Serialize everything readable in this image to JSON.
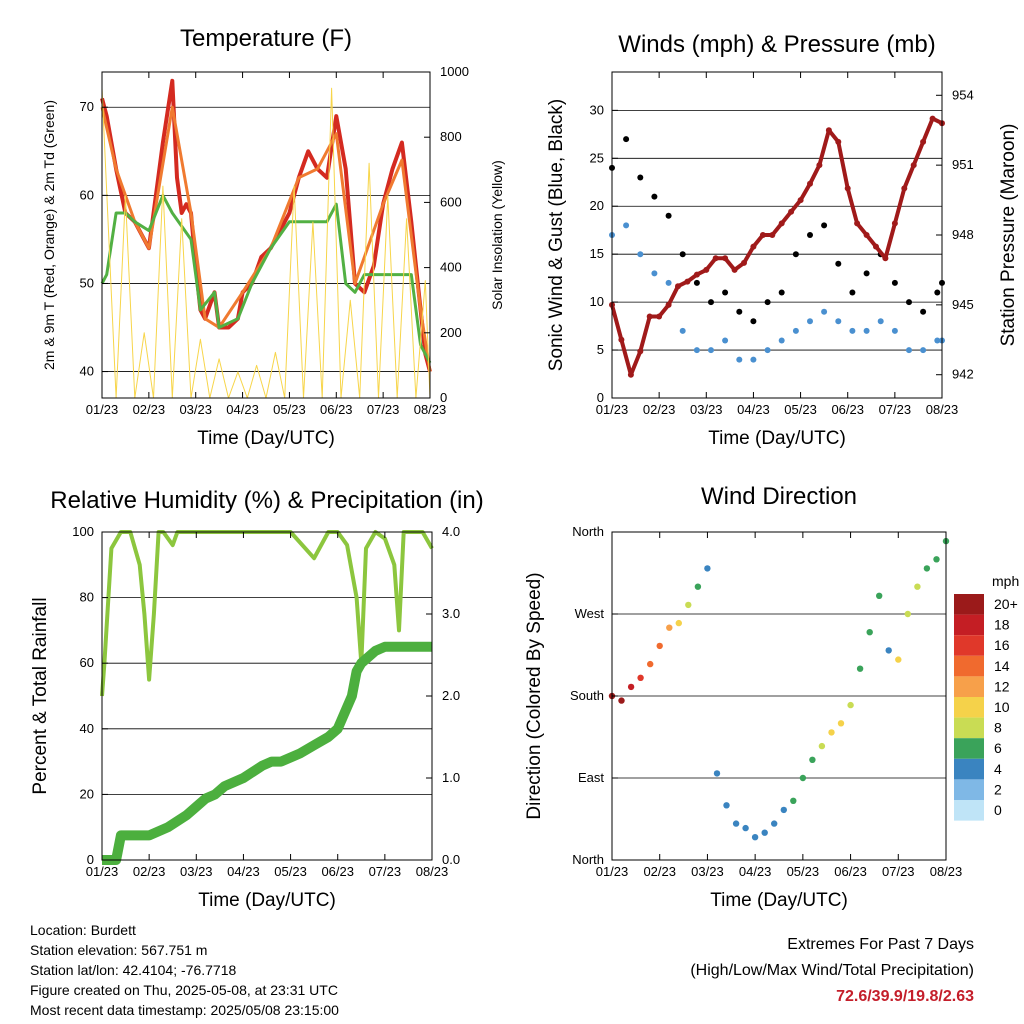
{
  "chart_data": [
    {
      "type": "line",
      "title": "Temperature (F)",
      "xlabel": "Time (Day/UTC)",
      "ylabel": "2m & 9m T (Red, Orange) & 2m Td (Green)",
      "ylabel_right": "Solar Insolation (Yellow)",
      "x_ticks": [
        "01/23",
        "02/23",
        "03/23",
        "04/23",
        "05/23",
        "06/23",
        "07/23",
        "08/23"
      ],
      "ylim": [
        37,
        74
      ],
      "y_ticks": [
        "40",
        "50",
        "60",
        "70"
      ],
      "ylim_right": [
        0,
        1000
      ],
      "y_ticks_right": [
        "0",
        "200",
        "400",
        "600",
        "800",
        "1000"
      ],
      "grid": "horizontal",
      "series": [
        {
          "name": "2m T",
          "color": "#d42a20",
          "x": [
            0,
            0.1,
            0.3,
            0.5,
            0.7,
            0.9,
            1,
            1.3,
            1.5,
            1.6,
            1.7,
            1.8,
            1.9,
            2.0,
            2.1,
            2.2,
            2.4,
            2.5,
            2.7,
            2.9,
            3.0,
            3.2,
            3.4,
            3.6,
            3.8,
            4.0,
            4.2,
            4.4,
            4.6,
            4.8,
            5.0,
            5.2,
            5.4,
            5.6,
            5.8,
            6.0,
            6.2,
            6.4,
            6.6,
            6.8,
            6.9,
            7.0
          ],
          "y": [
            71,
            69,
            63,
            58,
            57,
            55,
            54,
            66,
            73,
            62,
            58,
            59,
            58,
            52,
            47,
            46,
            49,
            45,
            45,
            46,
            49,
            50,
            53,
            54,
            56,
            58,
            62,
            65,
            63,
            62,
            69,
            63,
            50,
            49,
            52,
            59,
            63,
            66,
            57,
            47,
            42,
            40
          ]
        },
        {
          "name": "9m T",
          "color": "#f07a30",
          "x": [
            0,
            0.3,
            0.7,
            1,
            1.5,
            1.9,
            2.2,
            2.5,
            3.0,
            3.6,
            4.2,
            4.6,
            5.0,
            5.4,
            6.0,
            6.4,
            6.8,
            7.0
          ],
          "y": [
            70,
            63,
            57,
            54,
            70,
            58,
            46,
            45,
            49,
            54,
            62,
            63,
            67,
            50,
            59,
            64,
            47,
            40
          ]
        },
        {
          "name": "2m Td",
          "color": "#52b043",
          "x": [
            0,
            0.1,
            0.3,
            0.5,
            0.7,
            1,
            1.3,
            1.5,
            1.9,
            2.1,
            2.4,
            2.5,
            2.9,
            3.2,
            3.6,
            4.0,
            4.4,
            4.8,
            5.0,
            5.2,
            5.4,
            5.6,
            5.8,
            6.0,
            6.4,
            6.6,
            6.8,
            7.0
          ],
          "y": [
            50,
            51,
            58,
            58,
            57,
            56,
            60,
            58,
            55,
            47,
            49,
            45,
            46,
            50,
            54,
            57,
            57,
            57,
            59,
            50,
            49,
            51,
            51,
            51,
            51,
            51,
            43,
            41
          ]
        },
        {
          "name": "Solar Insolation",
          "color": "#f7d54a",
          "axis": "right",
          "x": [
            0,
            0.3,
            0.5,
            0.7,
            0.9,
            1.1,
            1.3,
            1.5,
            1.7,
            1.9,
            2.1,
            2.3,
            2.5,
            2.7,
            2.9,
            3.1,
            3.3,
            3.5,
            3.7,
            3.9,
            4.1,
            4.3,
            4.5,
            4.7,
            4.9,
            5.1,
            5.3,
            5.5,
            5.7,
            5.9,
            6.1,
            6.3,
            6.5,
            6.7,
            6.9,
            7.0
          ],
          "y": [
            950,
            0,
            620,
            0,
            200,
            0,
            650,
            0,
            550,
            0,
            180,
            0,
            120,
            0,
            80,
            0,
            100,
            0,
            140,
            0,
            650,
            0,
            540,
            0,
            950,
            0,
            300,
            0,
            720,
            0,
            620,
            0,
            550,
            0,
            360,
            0
          ]
        }
      ]
    },
    {
      "type": "scatter",
      "title": "Winds (mph) & Pressure (mb)",
      "xlabel": "Time (Day/UTC)",
      "ylabel": "Sonic Wind & Gust (Blue, Black)",
      "ylabel_right": "Station Pressure (Maroon)",
      "x_ticks": [
        "01/23",
        "02/23",
        "03/23",
        "04/23",
        "05/23",
        "06/23",
        "07/23",
        "08/23"
      ],
      "ylim": [
        0,
        34
      ],
      "y_ticks": [
        "0",
        "5",
        "10",
        "15",
        "20",
        "25",
        "30"
      ],
      "ylim_right": [
        941,
        955
      ],
      "y_ticks_right": [
        "942",
        "945",
        "948",
        "951",
        "954"
      ],
      "grid": "horizontal",
      "series": [
        {
          "name": "Gust",
          "color": "#000000",
          "x": [
            0,
            0.3,
            0.6,
            0.9,
            1.2,
            1.5,
            1.8,
            2.1,
            2.4,
            2.7,
            3.0,
            3.3,
            3.6,
            3.9,
            4.2,
            4.5,
            4.8,
            5.1,
            5.4,
            5.7,
            6.0,
            6.3,
            6.6,
            6.9,
            7.0
          ],
          "y": [
            24,
            27,
            23,
            21,
            19,
            15,
            12,
            10,
            11,
            9,
            8,
            10,
            11,
            15,
            17,
            18,
            14,
            11,
            13,
            15,
            12,
            10,
            9,
            11,
            12
          ]
        },
        {
          "name": "Wind",
          "color": "#4a90d0",
          "x": [
            0,
            0.3,
            0.6,
            0.9,
            1.2,
            1.5,
            1.8,
            2.1,
            2.4,
            2.7,
            3.0,
            3.3,
            3.6,
            3.9,
            4.2,
            4.5,
            4.8,
            5.1,
            5.4,
            5.7,
            6.0,
            6.3,
            6.6,
            6.9,
            7.0
          ],
          "y": [
            17,
            18,
            15,
            13,
            12,
            7,
            5,
            5,
            6,
            4,
            4,
            5,
            6,
            7,
            8,
            9,
            8,
            7,
            7,
            8,
            7,
            5,
            5,
            6,
            6
          ]
        },
        {
          "name": "Pressure",
          "color": "#a01a1a",
          "axis": "right",
          "x": [
            0,
            0.2,
            0.4,
            0.6,
            0.8,
            1.0,
            1.2,
            1.4,
            1.6,
            1.8,
            2.0,
            2.2,
            2.4,
            2.6,
            2.8,
            3.0,
            3.2,
            3.4,
            3.6,
            3.8,
            4.0,
            4.2,
            4.4,
            4.6,
            4.8,
            5.0,
            5.2,
            5.4,
            5.6,
            5.8,
            6.0,
            6.2,
            6.4,
            6.6,
            6.8,
            7.0
          ],
          "y": [
            945,
            943.5,
            942,
            943,
            944.5,
            944.5,
            945,
            945.8,
            946,
            946.3,
            946.5,
            947,
            947,
            946.5,
            946.8,
            947.5,
            948,
            948,
            948.5,
            949,
            949.5,
            950.2,
            951,
            952.5,
            952,
            950,
            948.5,
            948,
            947.5,
            947,
            948.5,
            950,
            951,
            952,
            953,
            952.8
          ]
        }
      ]
    },
    {
      "type": "line",
      "title": "Relative Humidity (%) & Precipitation (in)",
      "xlabel": "Time (Day/UTC)",
      "ylabel": "Percent & Total Rainfall",
      "x_ticks": [
        "01/23",
        "02/23",
        "03/23",
        "04/23",
        "05/23",
        "06/23",
        "07/23",
        "08/23"
      ],
      "ylim": [
        0,
        100
      ],
      "y_ticks": [
        "0",
        "20",
        "40",
        "60",
        "80",
        "100"
      ],
      "ylim_right": [
        0,
        4
      ],
      "y_ticks_right": [
        "0.0",
        "1.0",
        "2.0",
        "3.0",
        "4.0"
      ],
      "grid": "horizontal",
      "series": [
        {
          "name": "Relative Humidity",
          "color": "#8cc63e",
          "x": [
            0,
            0.05,
            0.2,
            0.4,
            0.6,
            0.8,
            0.9,
            1.0,
            1.1,
            1.2,
            1.3,
            1.5,
            1.6,
            1.7,
            1.8,
            2.0,
            2.5,
            3.0,
            3.5,
            4.0,
            4.5,
            4.8,
            5.0,
            5.2,
            5.4,
            5.5,
            5.6,
            5.8,
            6.0,
            6.2,
            6.3,
            6.4,
            6.6,
            6.8,
            7.0
          ],
          "y": [
            50,
            60,
            95,
            100,
            100,
            90,
            75,
            55,
            75,
            100,
            100,
            96,
            100,
            100,
            100,
            100,
            100,
            100,
            100,
            100,
            92,
            100,
            100,
            96,
            80,
            60,
            95,
            100,
            98,
            90,
            70,
            100,
            100,
            100,
            95
          ]
        },
        {
          "name": "Total Precipitation",
          "color": "#4caf3e",
          "axis": "right",
          "x": [
            0,
            0.3,
            0.4,
            0.6,
            1.0,
            1.4,
            1.8,
            2.0,
            2.2,
            2.4,
            2.6,
            3.0,
            3.4,
            3.6,
            3.8,
            4.2,
            4.5,
            4.8,
            5.0,
            5.3,
            5.4,
            5.5,
            5.8,
            6.0,
            6.5,
            7.0
          ],
          "y": [
            0,
            0,
            0.3,
            0.3,
            0.3,
            0.4,
            0.55,
            0.65,
            0.75,
            0.8,
            0.9,
            1.0,
            1.15,
            1.2,
            1.2,
            1.3,
            1.4,
            1.5,
            1.6,
            2.0,
            2.3,
            2.4,
            2.55,
            2.6,
            2.6,
            2.6
          ]
        }
      ]
    },
    {
      "type": "scatter",
      "title": "Wind Direction",
      "xlabel": "Time (Day/UTC)",
      "ylabel": "Direction (Colored By Speed)",
      "x_ticks": [
        "01/23",
        "02/23",
        "03/23",
        "04/23",
        "05/23",
        "06/23",
        "07/23",
        "08/23"
      ],
      "ylim": [
        0,
        360
      ],
      "y_ticks": [
        "North",
        "East",
        "South",
        "West",
        "North"
      ],
      "grid": "horizontal",
      "legend": "right",
      "colorbar_title": "mph",
      "colorbar_labels": [
        "20+",
        "18",
        "16",
        "14",
        "12",
        "10",
        "8",
        "6",
        "4",
        "2",
        "0"
      ],
      "colorbar_colors": [
        "#9b1a1a",
        "#c41e24",
        "#e0382a",
        "#f06a2e",
        "#f7a04a",
        "#f5d24a",
        "#c9dc54",
        "#3aa35a",
        "#3a84c0",
        "#7fb8e6",
        "#bfe4f7"
      ],
      "series": [
        {
          "name": "Direction",
          "x": [
            0,
            0.2,
            0.4,
            0.6,
            0.8,
            1.0,
            1.2,
            1.4,
            1.6,
            1.8,
            2.0,
            2.2,
            2.4,
            2.6,
            2.8,
            3.0,
            3.2,
            3.4,
            3.6,
            3.8,
            4.0,
            4.2,
            4.4,
            4.6,
            4.8,
            5.0,
            5.2,
            5.4,
            5.6,
            5.8,
            6.0,
            6.2,
            6.4,
            6.6,
            6.8,
            7.0
          ],
          "y": [
            180,
            175,
            190,
            200,
            215,
            235,
            255,
            260,
            280,
            300,
            320,
            95,
            60,
            40,
            35,
            25,
            30,
            40,
            55,
            65,
            90,
            110,
            125,
            140,
            150,
            170,
            210,
            250,
            290,
            230,
            220,
            270,
            300,
            320,
            330,
            350
          ],
          "speed": [
            20,
            19,
            18,
            16,
            14,
            13,
            12,
            10,
            8,
            5,
            4,
            4,
            3,
            3,
            3,
            3,
            3,
            4,
            4,
            5,
            5,
            6,
            8,
            9,
            10,
            8,
            6,
            5,
            5,
            4,
            10,
            8,
            7,
            6,
            6,
            5
          ]
        }
      ]
    }
  ],
  "info": {
    "location": "Location: Burdett",
    "elevation": "Station elevation: 567.751 m",
    "latlon": "Station lat/lon: 42.4104; -76.7718",
    "created": "Figure created on Thu, 2025-05-08, at 23:31 UTC",
    "timestamp": "Most recent data timestamp: 2025/05/08 23:15:00"
  },
  "extremes": {
    "title": "Extremes For Past 7 Days",
    "subtitle": "(High/Low/Max Wind/Total Precipitation)",
    "values": "72.6/39.9/19.8/2.63"
  }
}
